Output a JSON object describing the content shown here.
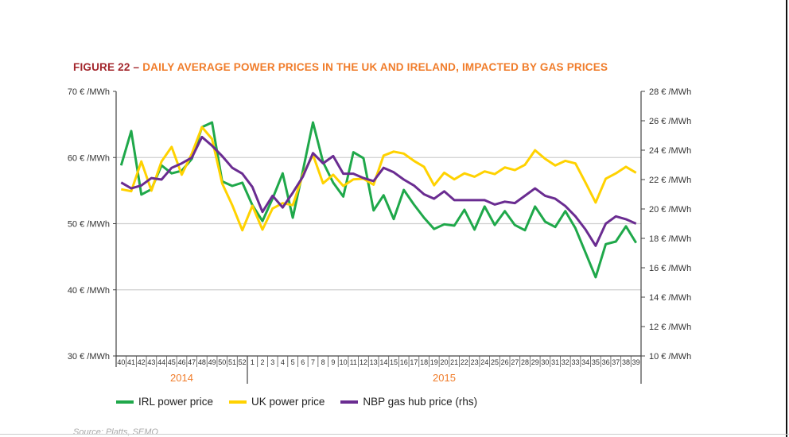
{
  "title": {
    "figure": "FIGURE 22 – ",
    "text": "DAILY AVERAGE POWER PRICES IN THE UK AND IRELAND, IMPACTED BY GAS PRICES"
  },
  "source": "Source: Platts, SEMO",
  "colors": {
    "irl": "#1fa84a",
    "uk": "#ffd200",
    "nbp": "#6a2c91",
    "title_fig": "#a3262c",
    "title_text": "#f07c2a"
  },
  "chart_data": {
    "type": "line",
    "grid": true,
    "legend_position": "bottom",
    "categories": [
      "40",
      "41",
      "42",
      "43",
      "44",
      "45",
      "46",
      "47",
      "48",
      "49",
      "50",
      "51",
      "52",
      "1",
      "2",
      "3",
      "4",
      "5",
      "6",
      "7",
      "8",
      "9",
      "10",
      "11",
      "12",
      "13",
      "14",
      "15",
      "16",
      "17",
      "18",
      "19",
      "20",
      "21",
      "22",
      "23",
      "24",
      "25",
      "26",
      "27",
      "28",
      "29",
      "30",
      "31",
      "32",
      "33",
      "34",
      "35",
      "36",
      "37",
      "38",
      "39"
    ],
    "year_groups": [
      {
        "label": "2014",
        "count": 13
      },
      {
        "label": "2015",
        "count": 39
      }
    ],
    "y_left": {
      "range": [
        30,
        70
      ],
      "ticks": [
        "30 € /MWh",
        "40 € /MWh",
        "50 € /MWh",
        "60 € /MWh",
        "70 € /MWh"
      ],
      "tick_values": [
        30,
        40,
        50,
        60,
        70
      ]
    },
    "y_right": {
      "range": [
        10,
        28
      ],
      "ticks": [
        "10 € /MWh",
        "12 € /MWh",
        "14 € /MWh",
        "16 € /MWh",
        "18 € /MWh",
        "20 € /MWh",
        "22 € /MWh",
        "24 € /MWh",
        "26 € /MWh",
        "28 € /MWh"
      ],
      "tick_values": [
        10,
        12,
        14,
        16,
        18,
        20,
        22,
        24,
        26,
        28
      ]
    },
    "series": [
      {
        "name": "IRL power price",
        "axis": "left",
        "color": "#1fa84a",
        "values": [
          58.8,
          64.0,
          54.4,
          55.2,
          58.8,
          57.6,
          58.0,
          59.8,
          64.6,
          65.3,
          56.4,
          55.7,
          56.2,
          52.8,
          50.4,
          53.8,
          57.6,
          50.9,
          58.0,
          65.3,
          59.3,
          56.2,
          54.1,
          60.8,
          59.9,
          52.0,
          54.3,
          50.7,
          55.1,
          52.9,
          50.9,
          49.2,
          49.9,
          49.7,
          52.1,
          49.1,
          52.6,
          49.8,
          51.9,
          49.8,
          49.0,
          52.6,
          50.3,
          49.5,
          51.9,
          49.3,
          45.6,
          41.9,
          46.9,
          47.3,
          49.6,
          47.1
        ]
      },
      {
        "name": "UK power price",
        "axis": "left",
        "color": "#ffd200",
        "values": [
          55.2,
          54.9,
          59.4,
          55.0,
          59.4,
          61.6,
          57.4,
          60.6,
          64.6,
          62.8,
          56.1,
          52.8,
          49.0,
          52.7,
          49.1,
          52.3,
          53.1,
          52.8,
          57.4,
          60.4,
          56.1,
          57.4,
          55.7,
          56.7,
          56.8,
          55.9,
          60.3,
          60.9,
          60.6,
          59.5,
          58.6,
          55.8,
          57.7,
          56.7,
          57.6,
          57.1,
          57.9,
          57.5,
          58.5,
          58.1,
          58.9,
          61.1,
          59.8,
          58.8,
          59.5,
          59.1,
          56.2,
          53.2,
          56.8,
          57.6,
          58.6,
          57.7
        ]
      },
      {
        "name": "NBP gas hub price (rhs)",
        "axis": "right",
        "color": "#6a2c91",
        "values": [
          21.8,
          21.4,
          21.6,
          22.1,
          22.0,
          22.8,
          23.1,
          23.5,
          24.9,
          24.3,
          23.6,
          22.8,
          22.4,
          21.5,
          19.8,
          20.9,
          20.1,
          21.1,
          22.2,
          23.8,
          23.1,
          23.6,
          22.4,
          22.4,
          22.1,
          21.9,
          22.8,
          22.5,
          22.0,
          21.6,
          21.0,
          20.7,
          21.2,
          20.6,
          20.6,
          20.6,
          20.6,
          20.3,
          20.5,
          20.4,
          20.9,
          21.4,
          20.9,
          20.7,
          20.2,
          19.5,
          18.6,
          17.5,
          19.0,
          19.5,
          19.3,
          19.0
        ]
      }
    ]
  }
}
